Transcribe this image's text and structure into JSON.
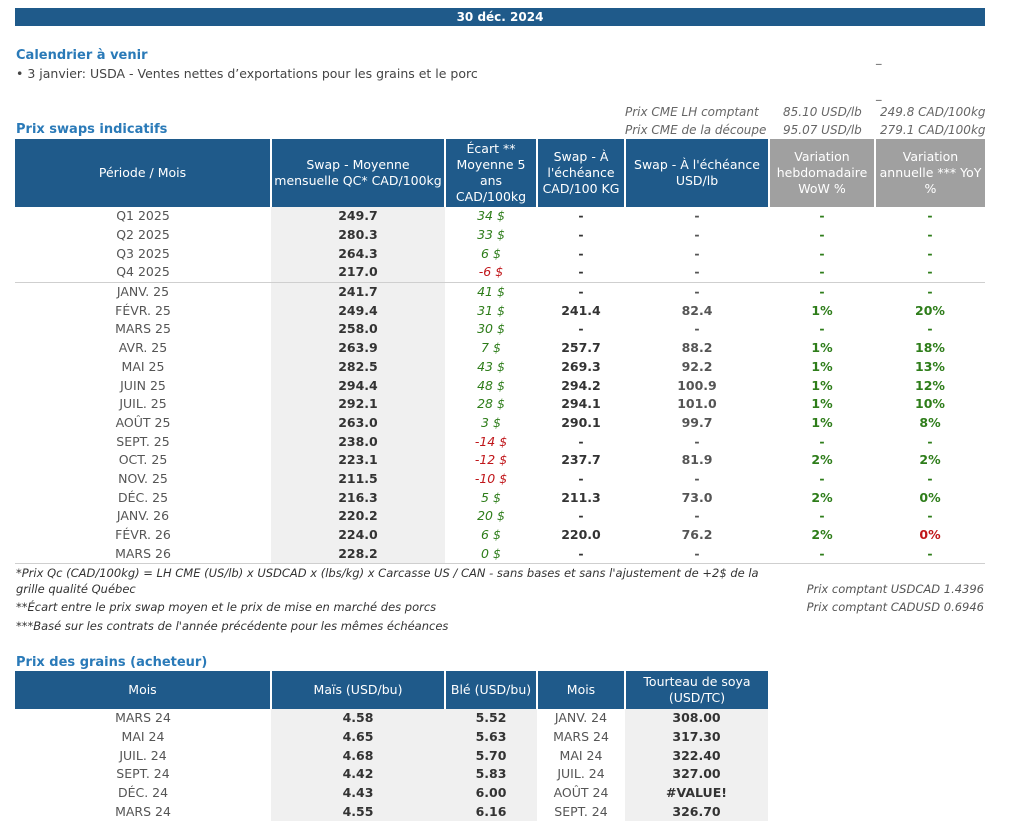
{
  "date_bar": "30 déc. 2024",
  "calendar": {
    "title": "Calendrier à venir",
    "item": "• 3 janvier: USDA - Ventes nettes d’exportations pour les grains et le porc"
  },
  "cme": {
    "lh_label": "Prix CME LH comptant",
    "lh_usd": "85.10 USD/lb",
    "lh_cad": "249.8 CAD/100kg",
    "decoupe_label": "Prix CME de la découpe",
    "decoupe_usd": "95.07 USD/lb",
    "decoupe_cad": "279.1 CAD/100kg"
  },
  "swaps": {
    "title": "Prix swaps indicatifs",
    "headers": [
      "Période / Mois",
      "Swap - Moyenne mensuelle QC* CAD/100kg",
      "Écart ** Moyenne 5 ans CAD/100kg",
      "Swap - À l'échéance CAD/100 KG",
      "Swap - À l'échéance USD/lb",
      "Variation hebdomadaire WoW %",
      "Variation annuelle *** YoY %"
    ],
    "rows": [
      {
        "period": "Q1 2025",
        "swap": "249.7",
        "ecart": "34 $",
        "cad": "-",
        "usd": "-",
        "wow": "-",
        "yoy": "-"
      },
      {
        "period": "Q2 2025",
        "swap": "280.3",
        "ecart": "33 $",
        "cad": "-",
        "usd": "-",
        "wow": "-",
        "yoy": "-"
      },
      {
        "period": "Q3 2025",
        "swap": "264.3",
        "ecart": "6 $",
        "cad": "-",
        "usd": "-",
        "wow": "-",
        "yoy": "-"
      },
      {
        "period": "Q4 2025",
        "swap": "217.0",
        "ecart": "-6 $",
        "cad": "-",
        "usd": "-",
        "wow": "-",
        "yoy": "-"
      },
      {
        "period": "JANV. 25",
        "swap": "241.7",
        "ecart": "41 $",
        "cad": "-",
        "usd": "-",
        "wow": "-",
        "yoy": "-"
      },
      {
        "period": "FÉVR. 25",
        "swap": "249.4",
        "ecart": "31 $",
        "cad": "241.4",
        "usd": "82.4",
        "wow": "1%",
        "yoy": "20%"
      },
      {
        "period": "MARS 25",
        "swap": "258.0",
        "ecart": "30 $",
        "cad": "-",
        "usd": "-",
        "wow": "-",
        "yoy": "-"
      },
      {
        "period": "AVR. 25",
        "swap": "263.9",
        "ecart": "7 $",
        "cad": "257.7",
        "usd": "88.2",
        "wow": "1%",
        "yoy": "18%"
      },
      {
        "period": "MAI 25",
        "swap": "282.5",
        "ecart": "43 $",
        "cad": "269.3",
        "usd": "92.2",
        "wow": "1%",
        "yoy": "13%"
      },
      {
        "period": "JUIN 25",
        "swap": "294.4",
        "ecart": "48 $",
        "cad": "294.2",
        "usd": "100.9",
        "wow": "1%",
        "yoy": "12%"
      },
      {
        "period": "JUIL. 25",
        "swap": "292.1",
        "ecart": "28 $",
        "cad": "294.1",
        "usd": "101.0",
        "wow": "1%",
        "yoy": "10%"
      },
      {
        "period": "AOÛT 25",
        "swap": "263.0",
        "ecart": "3 $",
        "cad": "290.1",
        "usd": "99.7",
        "wow": "1%",
        "yoy": "8%"
      },
      {
        "period": "SEPT. 25",
        "swap": "238.0",
        "ecart": "-14 $",
        "cad": "-",
        "usd": "-",
        "wow": "-",
        "yoy": "-"
      },
      {
        "period": "OCT. 25",
        "swap": "223.1",
        "ecart": "-12 $",
        "cad": "237.7",
        "usd": "81.9",
        "wow": "2%",
        "yoy": "2%"
      },
      {
        "period": "NOV. 25",
        "swap": "211.5",
        "ecart": "-10 $",
        "cad": "-",
        "usd": "-",
        "wow": "-",
        "yoy": "-"
      },
      {
        "period": "DÉC. 25",
        "swap": "216.3",
        "ecart": "5 $",
        "cad": "211.3",
        "usd": "73.0",
        "wow": "2%",
        "yoy": "0%"
      },
      {
        "period": "JANV. 26",
        "swap": "220.2",
        "ecart": "20 $",
        "cad": "-",
        "usd": "-",
        "wow": "-",
        "yoy": "-"
      },
      {
        "period": "FÉVR. 26",
        "swap": "224.0",
        "ecart": "6 $",
        "cad": "220.0",
        "usd": "76.2",
        "wow": "2%",
        "yoy": "0%"
      },
      {
        "period": "MARS 26",
        "swap": "228.2",
        "ecart": "0 $",
        "cad": "-",
        "usd": "-",
        "wow": "-",
        "yoy": "-"
      }
    ]
  },
  "notes": {
    "n1a": "*Prix Qc (CAD/100kg) = LH CME (US/lb) x USDCAD x (lbs/kg) x Carcasse US / CAN - sans bases et sans l'ajustement de +2$ de la",
    "n1b": "grille qualité Québec",
    "n2": "**Écart entre le prix swap moyen et le prix de mise en marché des porcs",
    "n3": "***Basé sur les contrats de l'année précédente pour les mêmes échéances",
    "usdcad": "Prix comptant USDCAD 1.4396",
    "cadusd": "Prix comptant CADUSD 0.6946"
  },
  "grains": {
    "title": "Prix des grains (acheteur)",
    "headers": [
      "Mois",
      "Maïs (USD/bu)",
      "Blé (USD/bu)",
      "Mois",
      "Tourteau de soya (USD/TC)"
    ],
    "rows": [
      {
        "m1": "MARS 24",
        "mais": "4.58",
        "ble": "5.52",
        "m2": "JANV. 24",
        "soya": "308.00"
      },
      {
        "m1": "MAI 24",
        "mais": "4.65",
        "ble": "5.63",
        "m2": "MARS 24",
        "soya": "317.30"
      },
      {
        "m1": "JUIL. 24",
        "mais": "4.68",
        "ble": "5.70",
        "m2": "MAI 24",
        "soya": "322.40"
      },
      {
        "m1": "SEPT. 24",
        "mais": "4.42",
        "ble": "5.83",
        "m2": "JUIL. 24",
        "soya": "327.00"
      },
      {
        "m1": "DÉC. 24",
        "mais": "4.43",
        "ble": "6.00",
        "m2": "AOÛT 24",
        "soya": "#VALUE!"
      },
      {
        "m1": "MARS 24",
        "mais": "4.55",
        "ble": "6.16",
        "m2": "SEPT. 24",
        "soya": "326.70"
      }
    ]
  },
  "colors": {
    "header_blue": "#1f5a8a",
    "title_blue": "#2a7ab8",
    "green": "#2e7d1a",
    "red": "#c0161a",
    "gray_header": "#a0a0a0"
  }
}
